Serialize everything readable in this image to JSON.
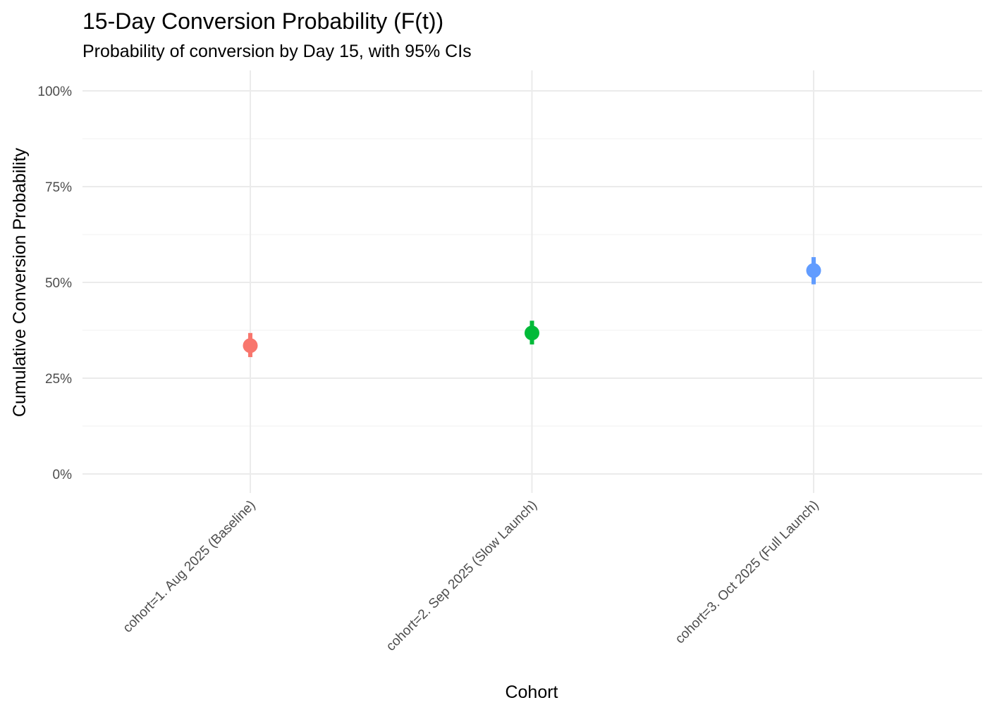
{
  "chart_data": {
    "type": "scatter",
    "title": "15-Day Conversion Probability (F(t))",
    "subtitle": "Probability of conversion by Day 15, with 95% CIs",
    "xlabel": "Cohort",
    "ylabel": "Cumulative Conversion Probability",
    "categories": [
      "cohort=1. Aug 2025 (Baseline)",
      "cohort=2. Sep 2025 (Slow Launch)",
      "cohort=3. Oct 2025 (Full Launch)"
    ],
    "values": [
      0.335,
      0.368,
      0.531
    ],
    "ci_lower": [
      0.305,
      0.338,
      0.495
    ],
    "ci_upper": [
      0.368,
      0.4,
      0.566
    ],
    "colors": [
      "#F8766D",
      "#00BA38",
      "#619CFF"
    ],
    "ylim": [
      0,
      1
    ],
    "yticks": [
      {
        "value": 0,
        "label": "0%"
      },
      {
        "value": 0.25,
        "label": "25%"
      },
      {
        "value": 0.5,
        "label": "50%"
      },
      {
        "value": 0.75,
        "label": "75%"
      },
      {
        "value": 1,
        "label": "100%"
      }
    ],
    "grid": true,
    "legend": "none"
  }
}
